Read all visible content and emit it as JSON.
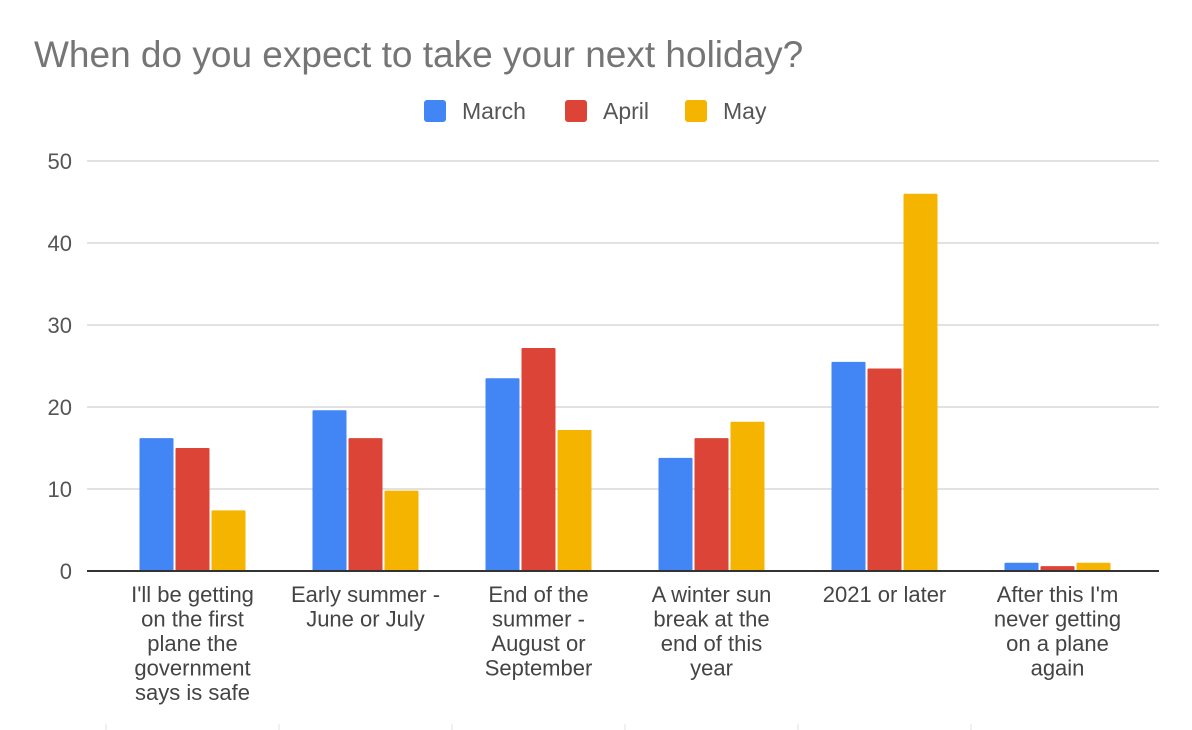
{
  "chart_data": {
    "type": "bar",
    "title": "When do you expect to take your next holiday?",
    "xlabel": "",
    "ylabel": "",
    "ylim": [
      0,
      50
    ],
    "yticks": [
      0,
      10,
      20,
      30,
      40,
      50
    ],
    "grid": true,
    "legend_position": "top-center",
    "categories": [
      [
        "I'll be getting",
        "on the first",
        "plane the",
        "government",
        "says is safe"
      ],
      [
        "Early summer -",
        "June or July"
      ],
      [
        "End of the",
        "summer -",
        "August or",
        "September"
      ],
      [
        "A winter sun",
        "break at the",
        "end of this",
        "year"
      ],
      [
        "2021 or later"
      ],
      [
        "After this I'm",
        "never getting",
        "on a plane",
        "again"
      ]
    ],
    "series": [
      {
        "name": "March",
        "color": "#4285f4",
        "values": [
          16.2,
          19.6,
          23.5,
          13.8,
          25.5,
          1.0
        ]
      },
      {
        "name": "April",
        "color": "#db4437",
        "values": [
          15.0,
          16.2,
          27.2,
          16.2,
          24.7,
          0.6
        ]
      },
      {
        "name": "May",
        "color": "#f4b400",
        "values": [
          7.4,
          9.8,
          17.2,
          18.2,
          46.0,
          1.0
        ]
      }
    ]
  }
}
